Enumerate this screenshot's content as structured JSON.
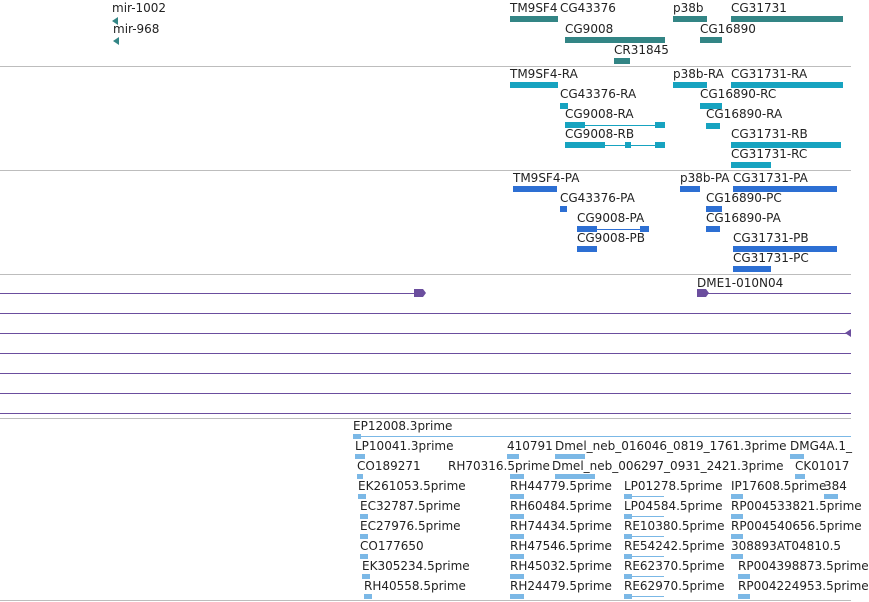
{
  "colors": {
    "gene": "#338585",
    "transcript": "#17a3c0",
    "protein": "#2d6fd3",
    "alignment": "#6b4e9e",
    "est": "#7bb8e6",
    "separator": "#bdbdbd"
  },
  "tracks": {
    "genes": {
      "features": [
        {
          "label": "mir-1002"
        },
        {
          "label": "mir-968"
        },
        {
          "label": "TM9SF4"
        },
        {
          "label": "CG43376"
        },
        {
          "label": "CG9008"
        },
        {
          "label": "CR31845"
        },
        {
          "label": "p38b"
        },
        {
          "label": "CG16890"
        },
        {
          "label": "CG31731"
        }
      ]
    },
    "transcripts": {
      "features": [
        {
          "label": "TM9SF4-RA"
        },
        {
          "label": "CG43376-RA"
        },
        {
          "label": "CG9008-RA"
        },
        {
          "label": "CG9008-RB"
        },
        {
          "label": "p38b-RA"
        },
        {
          "label": "CG16890-RC"
        },
        {
          "label": "CG16890-RA"
        },
        {
          "label": "CG31731-RA"
        },
        {
          "label": "CG31731-RB"
        },
        {
          "label": "CG31731-RC"
        }
      ]
    },
    "proteins": {
      "features": [
        {
          "label": "TM9SF4-PA"
        },
        {
          "label": "CG43376-PA"
        },
        {
          "label": "CG9008-PA"
        },
        {
          "label": "CG9008-PB"
        },
        {
          "label": "p38b-PA"
        },
        {
          "label": "CG31731-PA"
        },
        {
          "label": "CG16890-PC"
        },
        {
          "label": "CG16890-PA"
        },
        {
          "label": "CG31731-PB"
        },
        {
          "label": "CG31731-PC"
        }
      ]
    },
    "alignments": {
      "features": [
        {
          "label": "DME1-010N04"
        }
      ]
    },
    "ests": {
      "features": [
        {
          "label": "EP12008.3prime"
        },
        {
          "label": "LP10041.3prime"
        },
        {
          "label": "410791"
        },
        {
          "label": "Dmel_neb_016046_0819_1761.3prime"
        },
        {
          "label": "DMG4A.1_"
        },
        {
          "label": "CO189271"
        },
        {
          "label": "RH70316.5prime"
        },
        {
          "label": "Dmel_neb_006297_0931_2421.3prime"
        },
        {
          "label": "CK01017"
        },
        {
          "label": "EK261053.5prime"
        },
        {
          "label": "RH44779.5prime"
        },
        {
          "label": "LP01278.5prime"
        },
        {
          "label": "IP17608.5prime"
        },
        {
          "label": "384"
        },
        {
          "label": "EC32787.5prime"
        },
        {
          "label": "RH60484.5prime"
        },
        {
          "label": "LP04584.5prime"
        },
        {
          "label": "RP004533821.5prime"
        },
        {
          "label": "EC27976.5prime"
        },
        {
          "label": "RH74434.5prime"
        },
        {
          "label": "RE10380.5prime"
        },
        {
          "label": "RP004540656.5prime"
        },
        {
          "label": "CO177650"
        },
        {
          "label": "RH47546.5prime"
        },
        {
          "label": "RE54242.5prime"
        },
        {
          "label": "308893AT04810.5"
        },
        {
          "label": "EK305234.5prime"
        },
        {
          "label": "RH45032.5prime"
        },
        {
          "label": "RE62370.5prime"
        },
        {
          "label": "RP004398873.5prime"
        },
        {
          "label": "RH40558.5prime"
        },
        {
          "label": "RH24479.5prime"
        },
        {
          "label": "RE62970.5prime"
        },
        {
          "label": "RP004224953.5prime"
        }
      ]
    }
  }
}
